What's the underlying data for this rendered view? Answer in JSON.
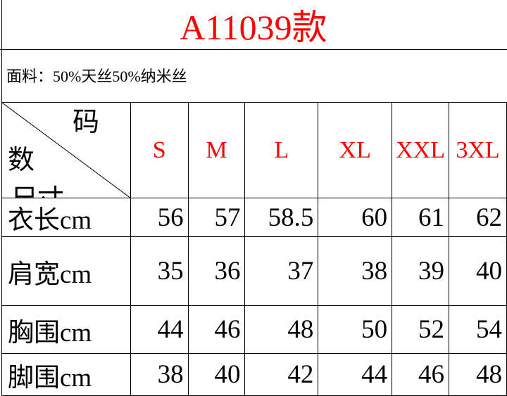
{
  "title": "A11039款",
  "fabric": "面料：50%天丝50%纳米丝",
  "header": {
    "corner_top": "码",
    "corner_mid": "数",
    "corner_bottom": "尺寸",
    "sizes": [
      "S",
      "M",
      "L",
      "XL",
      "XXL",
      "3XL"
    ]
  },
  "rows": [
    {
      "label": "衣长cm",
      "values": [
        "56",
        "57",
        "58.5",
        "60",
        "61",
        "62"
      ]
    },
    {
      "label": "肩宽cm",
      "values": [
        "35",
        "36",
        "37",
        "38",
        "39",
        "40"
      ]
    },
    {
      "label": "胸围cm",
      "values": [
        "44",
        "46",
        "48",
        "50",
        "52",
        "54"
      ]
    },
    {
      "label": "脚围cm",
      "values": [
        "38",
        "40",
        "42",
        "44",
        "46",
        "48"
      ]
    }
  ],
  "colors": {
    "title": "#ff0000",
    "sizes": "#ff0000"
  }
}
